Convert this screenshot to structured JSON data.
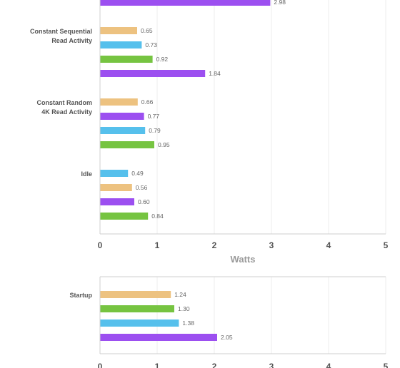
{
  "colors": {
    "orange": "#edc280",
    "blue": "#56c0ec",
    "green": "#76c441",
    "purple": "#9c4ff0",
    "grid": "#ececec",
    "frame": "#cfcfcf"
  },
  "chart_data": [
    {
      "type": "bar",
      "orientation": "horizontal",
      "xlabel": "Watts",
      "xlim": [
        0,
        5
      ],
      "xticks": [
        "0",
        "1",
        "2",
        "3",
        "4",
        "5"
      ],
      "grid": true,
      "groups": [
        {
          "label_lines": [],
          "bars": [
            {
              "value": 2.98,
              "label": "2.98",
              "color": "purple"
            }
          ]
        },
        {
          "label_lines": [
            "Constant Sequential",
            "Read Activity"
          ],
          "bars": [
            {
              "value": 0.65,
              "label": "0.65",
              "color": "orange"
            },
            {
              "value": 0.73,
              "label": "0.73",
              "color": "blue"
            },
            {
              "value": 0.92,
              "label": "0.92",
              "color": "green"
            },
            {
              "value": 1.84,
              "label": "1.84",
              "color": "purple"
            }
          ]
        },
        {
          "label_lines": [
            "Constant Random",
            "4K Read Activity"
          ],
          "bars": [
            {
              "value": 0.66,
              "label": "0.66",
              "color": "orange"
            },
            {
              "value": 0.77,
              "label": "0.77",
              "color": "purple"
            },
            {
              "value": 0.79,
              "label": "0.79",
              "color": "blue"
            },
            {
              "value": 0.95,
              "label": "0.95",
              "color": "green"
            }
          ]
        },
        {
          "label_lines": [
            "Idle"
          ],
          "bars": [
            {
              "value": 0.49,
              "label": "0.49",
              "color": "blue"
            },
            {
              "value": 0.56,
              "label": "0.56",
              "color": "orange"
            },
            {
              "value": 0.6,
              "label": "0.60",
              "color": "purple"
            },
            {
              "value": 0.84,
              "label": "0.84",
              "color": "green"
            }
          ]
        }
      ]
    },
    {
      "type": "bar",
      "orientation": "horizontal",
      "xlabel": "",
      "xlim": [
        0,
        5
      ],
      "xticks": [
        "0",
        "1",
        "2",
        "3",
        "4",
        "5"
      ],
      "grid": true,
      "groups": [
        {
          "label_lines": [
            "Startup"
          ],
          "bars": [
            {
              "value": 1.24,
              "label": "1.24",
              "color": "orange"
            },
            {
              "value": 1.3,
              "label": "1.30",
              "color": "green"
            },
            {
              "value": 1.38,
              "label": "1.38",
              "color": "blue"
            },
            {
              "value": 2.05,
              "label": "2.05",
              "color": "purple"
            }
          ]
        }
      ]
    }
  ]
}
